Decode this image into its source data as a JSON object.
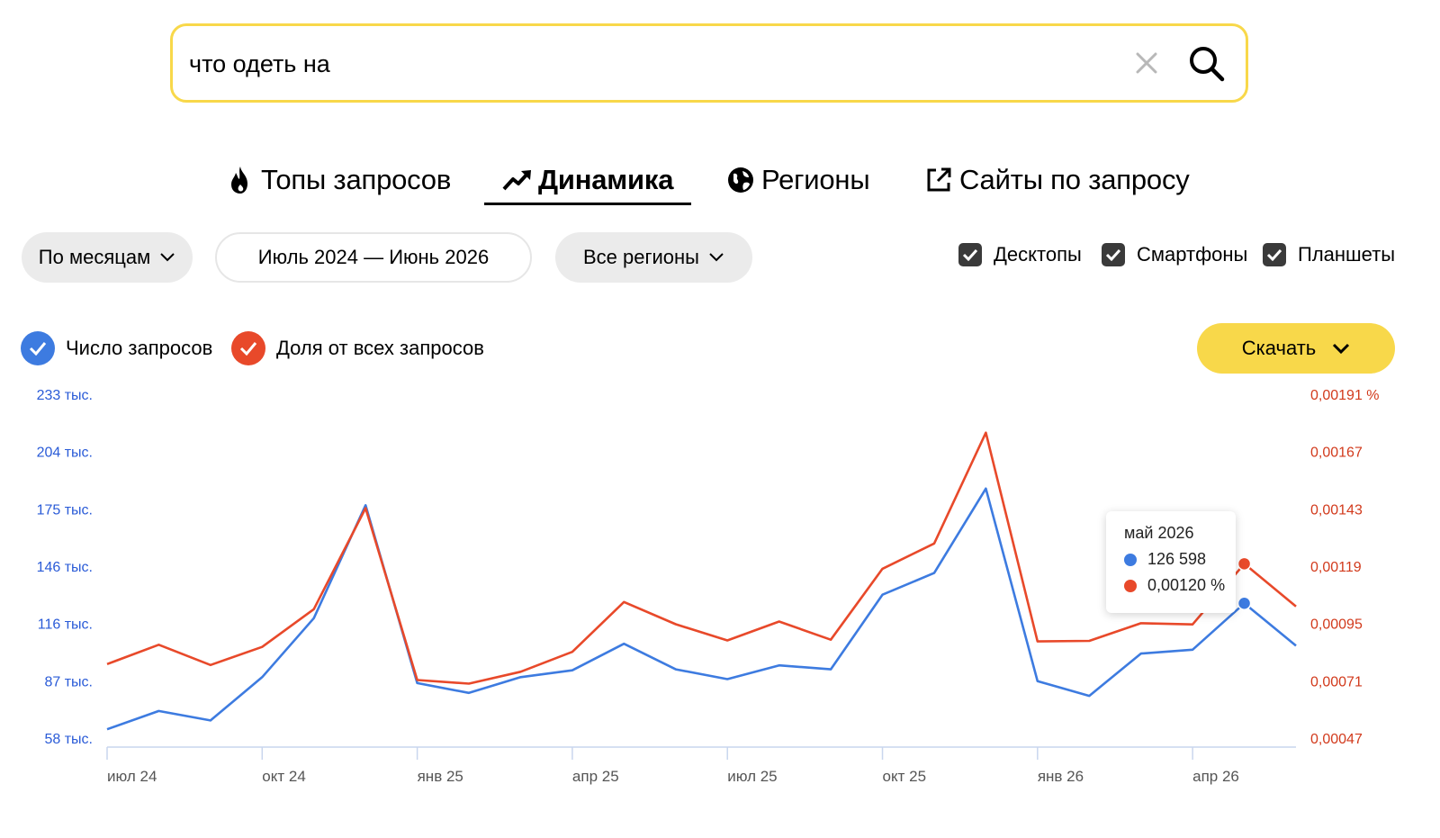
{
  "search": {
    "value": "что одеть на"
  },
  "tabs": [
    {
      "label": "Топы запросов",
      "icon": "flame-icon",
      "active": false
    },
    {
      "label": "Динамика",
      "icon": "trend-up-icon",
      "active": true
    },
    {
      "label": "Регионы",
      "icon": "globe-icon",
      "active": false
    },
    {
      "label": "Сайты по запросу",
      "icon": "external-link-icon",
      "active": false
    }
  ],
  "filters": {
    "period": "По месяцам",
    "date_range": "Июль 2024 — Июнь 2026",
    "region": "Все регионы"
  },
  "devices": [
    {
      "label": "Десктопы",
      "checked": true
    },
    {
      "label": "Смартфоны",
      "checked": true
    },
    {
      "label": "Планшеты",
      "checked": true
    }
  ],
  "legend": [
    {
      "label": "Число запросов",
      "color": "#3d7be0",
      "checked": true
    },
    {
      "label": "Доля от всех запросов",
      "color": "#e8492a",
      "checked": true
    }
  ],
  "download_label": "Скачать",
  "tooltip": {
    "title": "май 2026",
    "count": "126 598",
    "share": "0,00120 %"
  },
  "chart_data": {
    "type": "line",
    "x": [
      "июл 24",
      "авг 24",
      "сен 24",
      "окт 24",
      "ноя 24",
      "дек 24",
      "янв 25",
      "фев 25",
      "мар 25",
      "апр 25",
      "май 25",
      "июн 25",
      "июл 25",
      "авг 25",
      "сен 25",
      "окт 25",
      "ноя 25",
      "дек 25",
      "янв 26",
      "фев 26",
      "мар 26",
      "апр 26",
      "май 26",
      "июн 26"
    ],
    "x_tick_labels": [
      "июл 24",
      "окт 24",
      "янв 25",
      "апр 25",
      "июл 25",
      "окт 25",
      "янв 26",
      "апр 26"
    ],
    "series": [
      {
        "name": "Число запросов",
        "color": "#3d7be0",
        "axis": "left",
        "values": [
          62500,
          71800,
          67000,
          89000,
          119000,
          176500,
          86000,
          81000,
          89000,
          92500,
          106000,
          93000,
          88000,
          95000,
          93000,
          131000,
          142000,
          185000,
          87000,
          79500,
          101000,
          103000,
          126598,
          105000
        ]
      },
      {
        "name": "Доля от всех запросов",
        "color": "#e8492a",
        "axis": "right",
        "values": [
          0.00078,
          0.000861,
          0.000776,
          0.000852,
          0.00101,
          0.001433,
          0.000713,
          0.000698,
          0.000748,
          0.000831,
          0.00104,
          0.000947,
          0.000879,
          0.000958,
          0.000882,
          0.001179,
          0.001285,
          0.001749,
          0.000875,
          0.000877,
          0.000951,
          0.000946,
          0.0012,
          0.001021
        ]
      }
    ],
    "left_axis": {
      "ticks": [
        "233 тыс.",
        "204 тыс.",
        "175 тыс.",
        "146 тыс.",
        "116 тыс.",
        "87 тыс.",
        "58 тыс."
      ],
      "ylim": [
        58000,
        233000
      ]
    },
    "right_axis": {
      "ticks": [
        "0,00191 %",
        "0,00167",
        "0,00143",
        "0,00119",
        "0,00095",
        "0,00071",
        "0,00047"
      ],
      "ylim": [
        0.00047,
        0.00191
      ]
    },
    "grid": false
  }
}
